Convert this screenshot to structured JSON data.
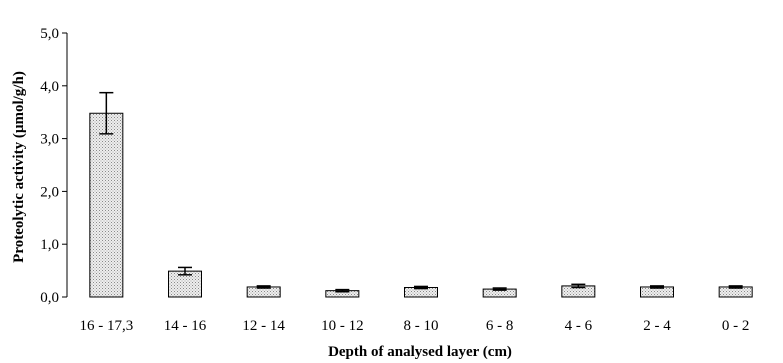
{
  "chart_data": {
    "type": "bar",
    "xlabel": "Depth of analysed layer (cm)",
    "ylabel": "Proteolytic activity  (µmol/g/h)",
    "ylim": [
      0,
      5
    ],
    "yticks": [
      "0,0",
      "1,0",
      "2,0",
      "3,0",
      "4,0",
      "5,0"
    ],
    "categories": [
      "16 - 17,3",
      "14 - 16",
      "12 - 14",
      "10 - 12",
      "8 - 10",
      "6 - 8",
      "4 - 6",
      "2 - 4",
      "0 - 2"
    ],
    "values": [
      3.48,
      0.49,
      0.19,
      0.12,
      0.18,
      0.15,
      0.21,
      0.19,
      0.19
    ],
    "errors": [
      0.39,
      0.07,
      0.02,
      0.02,
      0.02,
      0.02,
      0.03,
      0.02,
      0.02
    ],
    "bar_fill": "dotted light gray",
    "grid": false,
    "legend": "none"
  }
}
